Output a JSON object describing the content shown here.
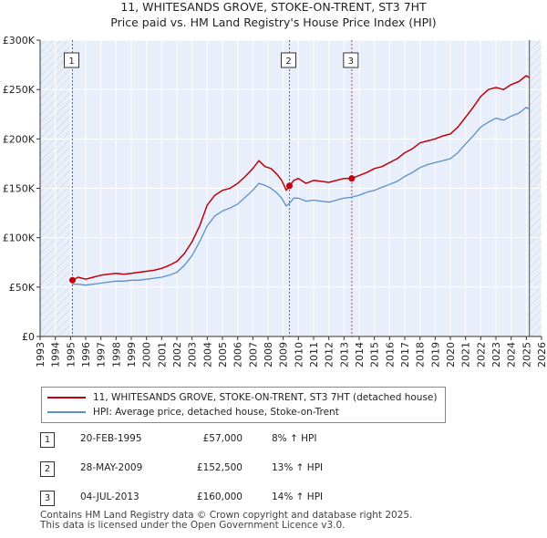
{
  "title_line1": "11, WHITESANDS GROVE, STOKE-ON-TRENT, ST3 7HT",
  "title_line2": "Price paid vs. HM Land Registry's House Price Index (HPI)",
  "colors": {
    "property": "#c0000b",
    "hpi": "#5b8fc9",
    "plot_bg": "#e8eefa",
    "hatch": "#cfcfcf",
    "marker_line": "#d04040"
  },
  "chart_data": {
    "type": "line",
    "xlim": [
      1993,
      2026
    ],
    "ylim": [
      0,
      300000
    ],
    "y_ticks": [
      0,
      50000,
      100000,
      150000,
      200000,
      250000,
      300000
    ],
    "y_tick_labels": [
      "£0",
      "£50K",
      "£100K",
      "£150K",
      "£200K",
      "£250K",
      "£300K"
    ],
    "x_ticks": [
      1993,
      1994,
      1995,
      1996,
      1997,
      1998,
      1999,
      2000,
      2001,
      2002,
      2003,
      2004,
      2005,
      2006,
      2007,
      2008,
      2009,
      2010,
      2011,
      2012,
      2013,
      2014,
      2015,
      2016,
      2017,
      2018,
      2019,
      2020,
      2021,
      2022,
      2023,
      2024,
      2025,
      2026
    ],
    "hatch_regions": [
      [
        1993,
        1995.13
      ],
      [
        2025.2,
        2026
      ]
    ],
    "series": [
      {
        "name": "11, WHITESANDS GROVE, STOKE-ON-TRENT, ST3 7HT (detached house)",
        "role": "property",
        "x": [
          1995.13,
          1995.5,
          1996,
          1996.5,
          1997,
          1997.5,
          1998,
          1998.5,
          1999,
          1999.5,
          2000,
          2000.5,
          2001,
          2001.5,
          2002,
          2002.5,
          2003,
          2003.5,
          2004,
          2004.5,
          2005,
          2005.5,
          2006,
          2006.5,
          2007,
          2007.4,
          2007.8,
          2008.2,
          2008.6,
          2008.9,
          2009.2,
          2009.41,
          2009.7,
          2010,
          2010.5,
          2011,
          2011.5,
          2012,
          2012.5,
          2013,
          2013.51,
          2014,
          2014.5,
          2015,
          2015.5,
          2016,
          2016.5,
          2017,
          2017.5,
          2018,
          2018.5,
          2019,
          2019.5,
          2020,
          2020.5,
          2021,
          2021.5,
          2022,
          2022.5,
          2023,
          2023.5,
          2024,
          2024.5,
          2025,
          2025.2
        ],
        "values": [
          57000,
          60000,
          58000,
          60000,
          62000,
          63000,
          64000,
          63000,
          64000,
          65000,
          66000,
          67000,
          69000,
          72000,
          76000,
          84000,
          96000,
          112000,
          133000,
          143000,
          148000,
          150000,
          155000,
          162000,
          170000,
          178000,
          172000,
          170000,
          164000,
          158000,
          148000,
          152500,
          158000,
          160000,
          155000,
          158000,
          157000,
          156000,
          158000,
          160000,
          160000,
          163000,
          166000,
          170000,
          172000,
          176000,
          180000,
          186000,
          190000,
          196000,
          198000,
          200000,
          203000,
          205000,
          212000,
          222000,
          232000,
          243000,
          250000,
          252000,
          250000,
          255000,
          258000,
          264000,
          262000
        ]
      },
      {
        "name": "HPI: Average price, detached house, Stoke-on-Trent",
        "role": "hpi",
        "x": [
          1995.13,
          1995.5,
          1996,
          1996.5,
          1997,
          1997.5,
          1998,
          1998.5,
          1999,
          1999.5,
          2000,
          2000.5,
          2001,
          2001.5,
          2002,
          2002.5,
          2003,
          2003.5,
          2004,
          2004.5,
          2005,
          2005.5,
          2006,
          2006.5,
          2007,
          2007.4,
          2007.8,
          2008.2,
          2008.6,
          2008.9,
          2009.2,
          2009.41,
          2009.7,
          2010,
          2010.5,
          2011,
          2011.5,
          2012,
          2012.5,
          2013,
          2013.51,
          2014,
          2014.5,
          2015,
          2015.5,
          2016,
          2016.5,
          2017,
          2017.5,
          2018,
          2018.5,
          2019,
          2019.5,
          2020,
          2020.5,
          2021,
          2021.5,
          2022,
          2022.5,
          2023,
          2023.5,
          2024,
          2024.5,
          2025,
          2025.2
        ],
        "values": [
          53000,
          53000,
          52000,
          53000,
          54000,
          55000,
          56000,
          56000,
          57000,
          57000,
          58000,
          59000,
          60000,
          62000,
          65000,
          72000,
          82000,
          96000,
          112000,
          122000,
          127000,
          130000,
          134000,
          141000,
          148000,
          155000,
          153000,
          150000,
          145000,
          140000,
          132000,
          135000,
          140000,
          140000,
          137000,
          138000,
          137000,
          136000,
          138000,
          140000,
          141000,
          143000,
          146000,
          148000,
          151000,
          154000,
          157000,
          162000,
          166000,
          171000,
          174000,
          176000,
          178000,
          180000,
          186000,
          195000,
          203000,
          212000,
          217000,
          221000,
          219000,
          223000,
          226000,
          232000,
          230000
        ]
      }
    ],
    "sales": [
      {
        "label": "1",
        "x": 1995.13,
        "value": 57000
      },
      {
        "label": "2",
        "x": 2009.41,
        "value": 152500
      },
      {
        "label": "3",
        "x": 2013.51,
        "value": 160000
      }
    ]
  },
  "legend": {
    "property_label": "11, WHITESANDS GROVE, STOKE-ON-TRENT, ST3 7HT (detached house)",
    "hpi_label": "HPI: Average price, detached house, Stoke-on-Trent"
  },
  "sales_table": [
    {
      "num": "1",
      "date": "20-FEB-1995",
      "price": "£57,000",
      "hpi": "8% ↑ HPI"
    },
    {
      "num": "2",
      "date": "28-MAY-2009",
      "price": "£152,500",
      "hpi": "13% ↑ HPI"
    },
    {
      "num": "3",
      "date": "04-JUL-2013",
      "price": "£160,000",
      "hpi": "14% ↑ HPI"
    }
  ],
  "footer": {
    "line1": "Contains HM Land Registry data © Crown copyright and database right 2025.",
    "line2": "This data is licensed under the Open Government Licence v3.0."
  }
}
